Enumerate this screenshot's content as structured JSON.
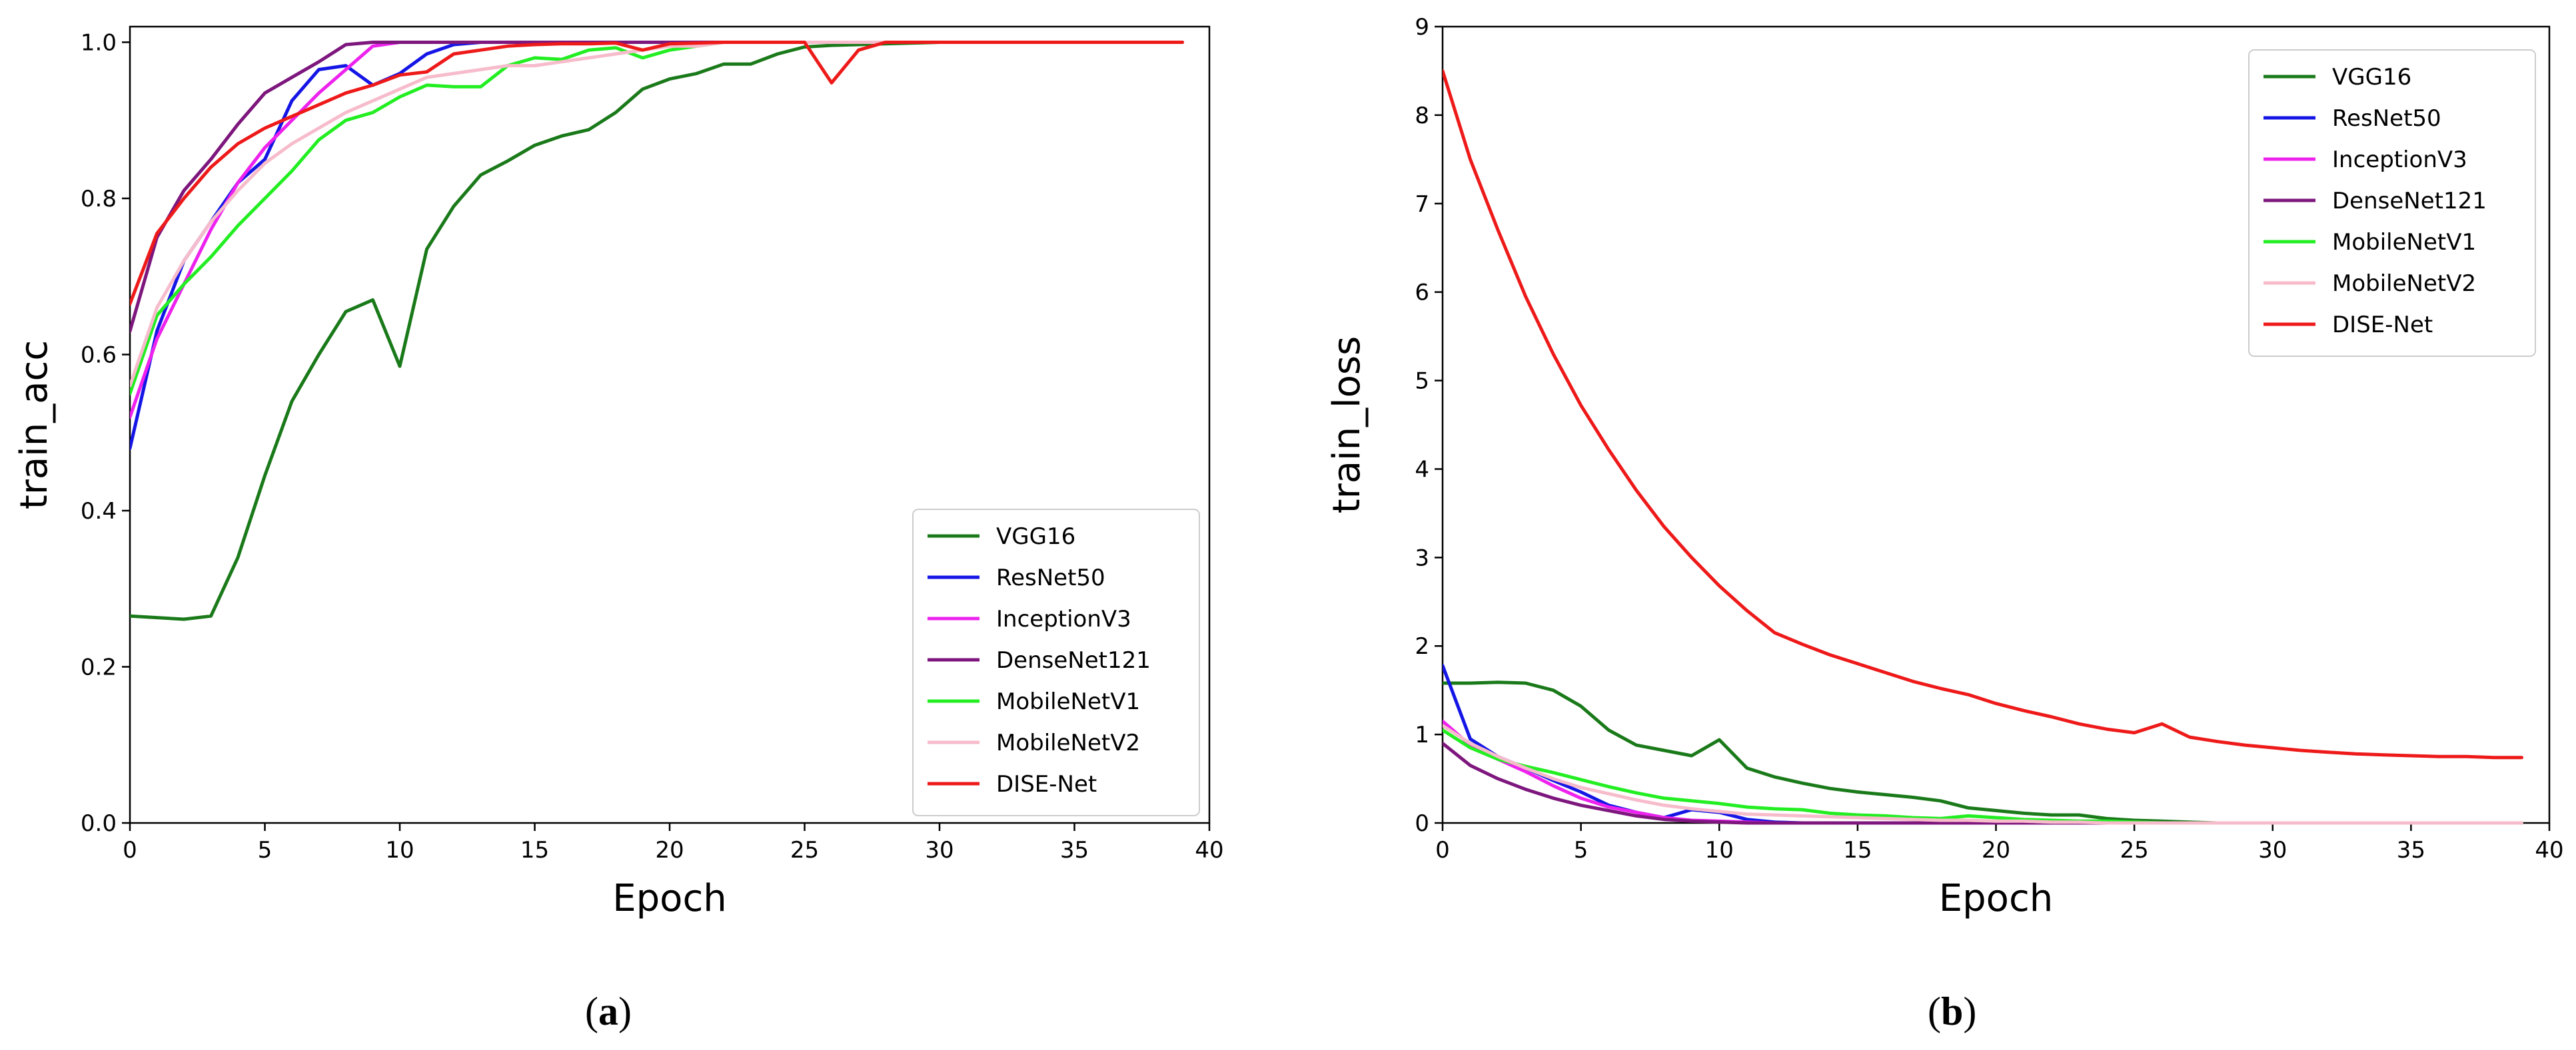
{
  "chart_data": [
    {
      "id": "a",
      "type": "line",
      "caption": "a",
      "xlabel": "Epoch",
      "ylabel": "train_acc",
      "xlim": [
        0,
        40
      ],
      "ylim": [
        0,
        1.02
      ],
      "xticks": [
        0,
        5,
        10,
        15,
        20,
        25,
        30,
        35,
        40
      ],
      "yticks": [
        0.0,
        0.2,
        0.4,
        0.6,
        0.8,
        1.0
      ],
      "ytick_labels": [
        "0.0",
        "0.2",
        "0.4",
        "0.6",
        "0.8",
        "1.0"
      ],
      "legend_position": "lower-right",
      "series": [
        {
          "name": "VGG16",
          "color": "#1a7a1a",
          "values": [
            0.265,
            0.263,
            0.261,
            0.265,
            0.34,
            0.445,
            0.54,
            0.6,
            0.655,
            0.67,
            0.585,
            0.735,
            0.79,
            0.83,
            0.848,
            0.868,
            0.88,
            0.888,
            0.91,
            0.94,
            0.953,
            0.96,
            0.972,
            0.972,
            0.985,
            0.994,
            0.996,
            0.997,
            0.998,
            0.999,
            1,
            1,
            1,
            1,
            1,
            1,
            1,
            1,
            1,
            1
          ]
        },
        {
          "name": "ResNet50",
          "color": "#1515e6",
          "values": [
            0.48,
            0.63,
            0.72,
            0.77,
            0.82,
            0.85,
            0.925,
            0.965,
            0.97,
            0.945,
            0.96,
            0.985,
            0.997,
            1,
            1,
            1,
            1,
            1,
            1,
            1,
            1,
            1,
            1,
            1,
            1,
            1,
            1,
            1,
            1,
            1,
            1,
            1,
            1,
            1,
            1,
            1,
            1,
            1,
            1,
            1
          ]
        },
        {
          "name": "InceptionV3",
          "color": "#ee22ee",
          "values": [
            0.52,
            0.62,
            0.69,
            0.76,
            0.82,
            0.865,
            0.9,
            0.935,
            0.965,
            0.995,
            1,
            1,
            1,
            1,
            1,
            1,
            1,
            1,
            1,
            1,
            1,
            1,
            1,
            1,
            1,
            1,
            1,
            1,
            1,
            1,
            1,
            1,
            1,
            1,
            1,
            1,
            1,
            1,
            1,
            1
          ]
        },
        {
          "name": "DenseNet121",
          "color": "#7d167d",
          "values": [
            0.63,
            0.75,
            0.81,
            0.85,
            0.895,
            0.935,
            0.955,
            0.975,
            0.997,
            1,
            1,
            1,
            1,
            1,
            1,
            1,
            1,
            1,
            1,
            1,
            1,
            1,
            1,
            1,
            1,
            1,
            1,
            1,
            1,
            1,
            1,
            1,
            1,
            1,
            1,
            1,
            1,
            1,
            1,
            1
          ]
        },
        {
          "name": "MobileNetV1",
          "color": "#22ee22",
          "values": [
            0.55,
            0.65,
            0.69,
            0.725,
            0.765,
            0.8,
            0.835,
            0.875,
            0.9,
            0.91,
            0.93,
            0.945,
            0.943,
            0.943,
            0.97,
            0.98,
            0.978,
            0.99,
            0.993,
            0.98,
            0.99,
            0.995,
            1,
            1,
            1,
            1,
            1,
            1,
            1,
            1,
            1,
            1,
            1,
            1,
            1,
            1,
            1,
            1,
            1,
            1
          ]
        },
        {
          "name": "MobileNetV2",
          "color": "#f7bccb",
          "values": [
            0.56,
            0.66,
            0.72,
            0.77,
            0.81,
            0.845,
            0.87,
            0.89,
            0.91,
            0.925,
            0.94,
            0.955,
            0.96,
            0.965,
            0.97,
            0.97,
            0.975,
            0.98,
            0.985,
            0.99,
            0.995,
            0.995,
            1,
            1,
            1,
            1,
            1,
            1,
            1,
            1,
            1,
            1,
            1,
            1,
            1,
            1,
            1,
            1,
            1,
            1
          ]
        },
        {
          "name": "DISE-Net",
          "color": "#ee1a1a",
          "values": [
            0.665,
            0.755,
            0.8,
            0.84,
            0.87,
            0.89,
            0.905,
            0.92,
            0.935,
            0.945,
            0.958,
            0.962,
            0.985,
            0.99,
            0.995,
            0.997,
            0.998,
            0.998,
            0.999,
            0.99,
            0.998,
            0.999,
            1,
            1,
            1,
            1,
            0.948,
            0.99,
            1,
            1,
            1,
            1,
            1,
            1,
            1,
            1,
            1,
            1,
            1,
            1
          ]
        }
      ]
    },
    {
      "id": "b",
      "type": "line",
      "caption": "b",
      "xlabel": "Epoch",
      "ylabel": "train_loss",
      "xlim": [
        0,
        40
      ],
      "ylim": [
        0,
        9
      ],
      "xticks": [
        0,
        5,
        10,
        15,
        20,
        25,
        30,
        35,
        40
      ],
      "yticks": [
        0,
        1,
        2,
        3,
        4,
        5,
        6,
        7,
        8,
        9
      ],
      "ytick_labels": [
        "0",
        "1",
        "2",
        "3",
        "4",
        "5",
        "6",
        "7",
        "8",
        "9"
      ],
      "legend_position": "top-right",
      "series": [
        {
          "name": "VGG16",
          "color": "#1a7a1a",
          "values": [
            1.58,
            1.58,
            1.59,
            1.58,
            1.5,
            1.32,
            1.05,
            0.88,
            0.82,
            0.76,
            0.94,
            0.62,
            0.52,
            0.45,
            0.39,
            0.35,
            0.32,
            0.29,
            0.25,
            0.17,
            0.14,
            0.11,
            0.09,
            0.09,
            0.05,
            0.03,
            0.02,
            0.01,
            0,
            0,
            0,
            0,
            0,
            0,
            0,
            0,
            0,
            0,
            0,
            0
          ]
        },
        {
          "name": "ResNet50",
          "color": "#1515e6",
          "values": [
            1.78,
            0.95,
            0.75,
            0.62,
            0.48,
            0.35,
            0.2,
            0.12,
            0.06,
            0.15,
            0.12,
            0.04,
            0.01,
            0,
            0,
            0,
            0,
            0,
            0,
            0,
            0,
            0,
            0,
            0,
            0,
            0,
            0,
            0,
            0,
            0,
            0,
            0,
            0,
            0,
            0,
            0,
            0,
            0,
            0,
            0
          ]
        },
        {
          "name": "InceptionV3",
          "color": "#ee22ee",
          "values": [
            1.15,
            0.88,
            0.72,
            0.58,
            0.42,
            0.28,
            0.18,
            0.12,
            0.06,
            0.03,
            0.02,
            0.01,
            0,
            0,
            0,
            0,
            0,
            0,
            0,
            0,
            0,
            0,
            0,
            0,
            0,
            0,
            0,
            0,
            0,
            0,
            0,
            0,
            0,
            0,
            0,
            0,
            0,
            0,
            0,
            0
          ]
        },
        {
          "name": "DenseNet121",
          "color": "#7d167d",
          "values": [
            0.9,
            0.65,
            0.5,
            0.38,
            0.28,
            0.2,
            0.14,
            0.08,
            0.04,
            0.02,
            0.01,
            0,
            0,
            0,
            0,
            0,
            0,
            0,
            0,
            0,
            0,
            0,
            0,
            0,
            0,
            0,
            0,
            0,
            0,
            0,
            0,
            0,
            0,
            0,
            0,
            0,
            0,
            0,
            0,
            0
          ]
        },
        {
          "name": "MobileNetV1",
          "color": "#22ee22",
          "values": [
            1.05,
            0.85,
            0.72,
            0.64,
            0.57,
            0.49,
            0.41,
            0.34,
            0.28,
            0.25,
            0.22,
            0.18,
            0.16,
            0.15,
            0.11,
            0.09,
            0.08,
            0.06,
            0.05,
            0.08,
            0.06,
            0.04,
            0.03,
            0.02,
            0.02,
            0.01,
            0,
            0,
            0,
            0,
            0,
            0,
            0,
            0,
            0,
            0,
            0,
            0,
            0,
            0
          ]
        },
        {
          "name": "MobileNetV2",
          "color": "#f7bccb",
          "values": [
            1.1,
            0.9,
            0.75,
            0.62,
            0.5,
            0.4,
            0.33,
            0.26,
            0.2,
            0.16,
            0.13,
            0.1,
            0.09,
            0.08,
            0.07,
            0.06,
            0.05,
            0.04,
            0.03,
            0.03,
            0.02,
            0.02,
            0.01,
            0.01,
            0,
            0,
            0,
            0,
            0,
            0,
            0,
            0,
            0,
            0,
            0,
            0,
            0,
            0,
            0,
            0
          ]
        },
        {
          "name": "DISE-Net",
          "color": "#ee1a1a",
          "values": [
            8.5,
            7.5,
            6.7,
            5.95,
            5.3,
            4.72,
            4.22,
            3.76,
            3.35,
            3.0,
            2.68,
            2.4,
            2.15,
            2.02,
            1.9,
            1.8,
            1.7,
            1.6,
            1.52,
            1.45,
            1.35,
            1.27,
            1.2,
            1.12,
            1.06,
            1.02,
            1.12,
            0.97,
            0.92,
            0.88,
            0.85,
            0.82,
            0.8,
            0.78,
            0.77,
            0.76,
            0.75,
            0.75,
            0.74,
            0.74
          ]
        }
      ]
    }
  ]
}
